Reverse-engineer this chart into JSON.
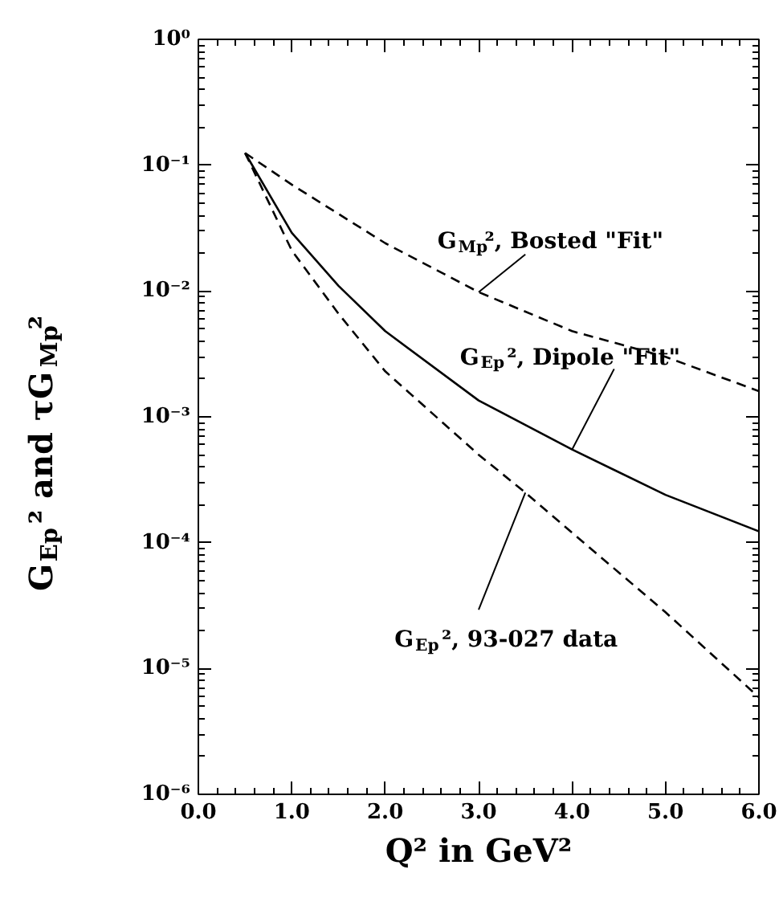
{
  "chart_data": {
    "type": "line",
    "xlabel": "Q² in GeV²",
    "ylabel": "G$_{Ep}$² and τG$_{Mp}$²",
    "log": "y",
    "grid": false,
    "marker": "none",
    "xlim": [
      0.0,
      6.0
    ],
    "ylim": [
      1e-06,
      1
    ],
    "xticks": [
      {
        "value": 0,
        "label": "0.0"
      },
      {
        "value": 1,
        "label": "1.0"
      },
      {
        "value": 2,
        "label": "2.0"
      },
      {
        "value": 3,
        "label": "3.0"
      },
      {
        "value": 4,
        "label": "4.0"
      },
      {
        "value": 5,
        "label": "5.0"
      },
      {
        "value": 6,
        "label": "6.0"
      }
    ],
    "yticks": [
      {
        "value": 1e-06,
        "label": "10⁻⁶"
      },
      {
        "value": 1e-05,
        "label": "10⁻⁵"
      },
      {
        "value": 0.0001,
        "label": "10⁻⁴"
      },
      {
        "value": 0.001,
        "label": "10⁻³"
      },
      {
        "value": 0.01,
        "label": "10⁻²"
      },
      {
        "value": 0.1,
        "label": "10⁻¹"
      },
      {
        "value": 1,
        "label": "10⁰"
      }
    ],
    "series": [
      {
        "color": "#000000",
        "line_style": "dashed",
        "x": [
          0.5,
          1.0,
          2.0,
          3.0,
          4.0,
          5.0,
          6.0
        ],
        "values": [
          0.125,
          0.07,
          0.024,
          0.0098,
          0.0048,
          0.003,
          0.0016
        ]
      },
      {
        "color": "#000000",
        "line_style": "solid",
        "x": [
          0.5,
          1.0,
          1.5,
          2.0,
          3.0,
          4.0,
          5.0,
          6.0
        ],
        "values": [
          0.125,
          0.029,
          0.011,
          0.0048,
          0.00135,
          0.00055,
          0.00024,
          0.000123
        ]
      },
      {
        "color": "#000000",
        "line_style": "dashed",
        "x": [
          0.5,
          1.0,
          1.5,
          2.0,
          3.0,
          3.5,
          4.0,
          5.0,
          6.0
        ],
        "values": [
          0.125,
          0.021,
          0.0066,
          0.0023,
          0.0005,
          0.00025,
          0.00012,
          2.8e-05,
          5.9e-06
        ]
      }
    ],
    "annotations": [
      {
        "text": "G$_{Mp}$², Bosted \"Fit\"",
        "x": 3.0,
        "y": 0.0098
      },
      {
        "text": "G$_{Ep}$², Dipole \"Fit\"",
        "x": 4.0,
        "y": 0.00055
      },
      {
        "text": "G$_{Ep}$², 93-027 data",
        "x": 3.5,
        "y": 0.00025
      }
    ]
  }
}
